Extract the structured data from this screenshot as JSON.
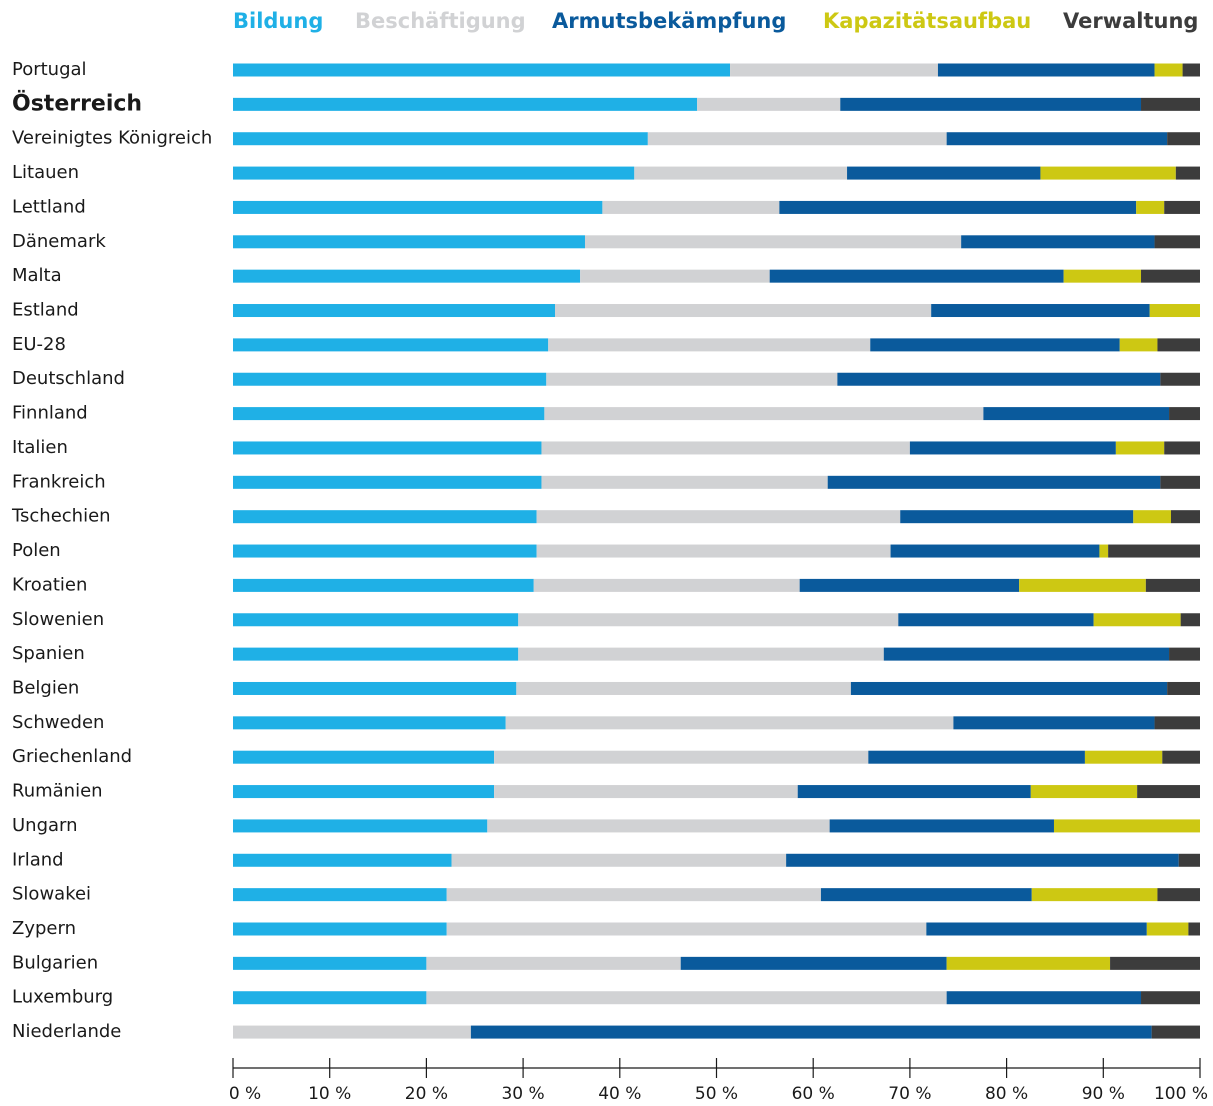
{
  "chart_data": {
    "type": "stacked_barh",
    "categories": [
      "Portugal",
      "Österreich",
      "Vereinigtes Königreich",
      "Litauen",
      "Lettland",
      "Dänemark",
      "Malta",
      "Estland",
      "EU-28",
      "Deutschland",
      "Finnland",
      "Italien",
      "Frankreich",
      "Tschechien",
      "Polen",
      "Kroatien",
      "Slowenien",
      "Spanien",
      "Belgien",
      "Schweden",
      "Griechenland",
      "Rumänien",
      "Ungarn",
      "Irland",
      "Slowakei",
      "Zypern",
      "Bulgarien",
      "Luxemburg",
      "Niederlande"
    ],
    "highlight_category": "Österreich",
    "series": [
      {
        "name": "Bildung",
        "color": "#1fb0e6",
        "values": [
          51.4,
          48.0,
          42.9,
          41.5,
          38.2,
          36.4,
          35.9,
          33.3,
          32.6,
          32.4,
          32.2,
          31.9,
          31.9,
          31.4,
          31.4,
          31.1,
          29.5,
          29.5,
          29.3,
          28.2,
          27.0,
          27.0,
          26.3,
          22.6,
          22.1,
          22.1,
          20.0,
          20.0,
          0
        ]
      },
      {
        "name": "Beschäftigung",
        "color": "#d1d2d4",
        "values": [
          21.5,
          14.8,
          30.9,
          22.0,
          18.3,
          38.9,
          19.6,
          38.9,
          33.3,
          30.1,
          45.4,
          38.1,
          29.6,
          37.6,
          36.6,
          27.5,
          39.3,
          37.8,
          34.6,
          46.3,
          38.7,
          31.4,
          35.4,
          34.6,
          38.7,
          49.6,
          26.3,
          53.8,
          24.6
        ]
      },
      {
        "name": "Armutsbekämpfung",
        "color": "#0a5a9c",
        "values": [
          22.4,
          31.1,
          22.8,
          20.0,
          36.9,
          20.0,
          30.4,
          22.6,
          25.8,
          33.4,
          19.2,
          21.3,
          34.4,
          24.1,
          21.6,
          22.7,
          20.2,
          29.5,
          32.7,
          20.8,
          22.4,
          24.1,
          23.2,
          40.6,
          21.8,
          22.8,
          27.5,
          20.1,
          70.4
        ]
      },
      {
        "name": "Kapazitätsaufbau",
        "color": "#cdc813",
        "values": [
          2.9,
          0,
          0,
          14.0,
          2.9,
          0,
          8.0,
          5.2,
          3.9,
          0,
          0,
          5.0,
          0,
          3.9,
          0.9,
          13.1,
          9.0,
          0,
          0,
          0,
          8.0,
          11.0,
          15.1,
          0,
          13.0,
          4.3,
          16.9,
          0,
          0
        ]
      },
      {
        "name": "Verwaltung",
        "color": "#3c3c3c",
        "values": [
          1.8,
          6.1,
          3.4,
          2.5,
          3.7,
          4.7,
          6.1,
          0,
          4.4,
          4.1,
          3.2,
          3.7,
          4.1,
          3.0,
          9.5,
          5.6,
          2.0,
          3.2,
          3.4,
          4.7,
          3.9,
          6.5,
          0,
          2.2,
          4.4,
          1.2,
          9.3,
          6.1,
          5.0
        ]
      }
    ],
    "xlim": [
      0,
      100
    ],
    "xticks": [
      {
        "value": 0,
        "label": "0 %"
      },
      {
        "value": 10,
        "label": "10 %"
      },
      {
        "value": 20,
        "label": "20 %"
      },
      {
        "value": 30,
        "label": "30 %"
      },
      {
        "value": 40,
        "label": "40 %"
      },
      {
        "value": 50,
        "label": "50 %"
      },
      {
        "value": 60,
        "label": "60 %"
      },
      {
        "value": 70,
        "label": "70 %"
      },
      {
        "value": 80,
        "label": "80 %"
      },
      {
        "value": 90,
        "label": "90 %"
      },
      {
        "value": 100,
        "label": "100 %"
      }
    ]
  }
}
